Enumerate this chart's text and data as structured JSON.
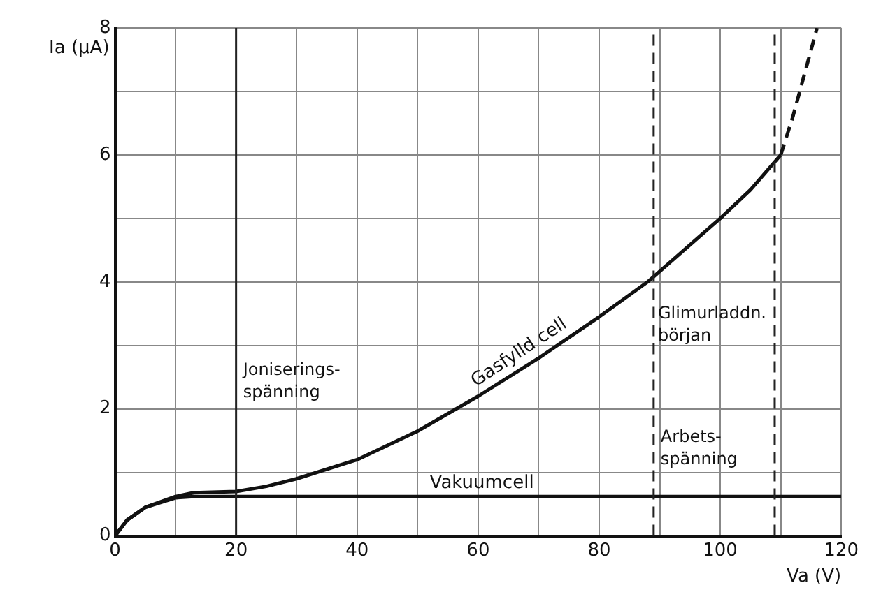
{
  "chart_data": {
    "type": "line",
    "xlabel": "Va (V)",
    "ylabel": "Ia (µA)",
    "xlim": [
      0,
      120
    ],
    "ylim": [
      0,
      8
    ],
    "xticks": [
      0,
      {
        "value": 10,
        "label": null
      },
      20,
      {
        "value": 30,
        "label": null
      },
      40,
      {
        "value": 50,
        "label": null
      },
      60,
      {
        "value": 70,
        "label": null
      },
      80,
      {
        "value": 90,
        "label": null
      },
      100,
      {
        "value": 110,
        "label": null
      },
      120
    ],
    "yticks": [
      0,
      {
        "value": 1,
        "label": null
      },
      2,
      {
        "value": 3,
        "label": null
      },
      4,
      {
        "value": 5,
        "label": null
      },
      6,
      {
        "value": 7,
        "label": null
      },
      8
    ],
    "grid": true,
    "legend": false,
    "marker": "none",
    "series": [
      {
        "name": "Gasfylld cell",
        "color": "#111111",
        "line_style": "solid",
        "x": [
          0,
          2,
          5,
          10,
          13,
          20,
          25,
          30,
          40,
          50,
          60,
          70,
          80,
          88,
          100,
          105,
          110
        ],
        "values": [
          0,
          0.25,
          0.45,
          0.62,
          0.68,
          0.7,
          0.78,
          0.9,
          1.2,
          1.65,
          2.2,
          2.8,
          3.45,
          4.0,
          5.0,
          5.45,
          6.0
        ]
      },
      {
        "color": "#111111",
        "line_style": "dashed",
        "x": [
          110,
          112,
          114,
          116
        ],
        "values": [
          6.0,
          6.6,
          7.3,
          8.0
        ]
      },
      {
        "name": "Vakuumcell",
        "color": "#111111",
        "line_style": "solid",
        "x": [
          0,
          2,
          5,
          10,
          13,
          120
        ],
        "values": [
          0,
          0.25,
          0.45,
          0.6,
          0.62,
          0.62
        ]
      }
    ],
    "ref_lines": [
      {
        "axis": "x",
        "value": 20,
        "label": "Joniserings-\nspänning",
        "line_style": "solid"
      },
      {
        "axis": "x",
        "value": 89,
        "label": "Arbets-\nspänning",
        "line_style": "dashed"
      },
      {
        "axis": "x",
        "value": 109,
        "label": "Glimurladdn.\nbörjan",
        "line_style": "dashed"
      }
    ]
  }
}
